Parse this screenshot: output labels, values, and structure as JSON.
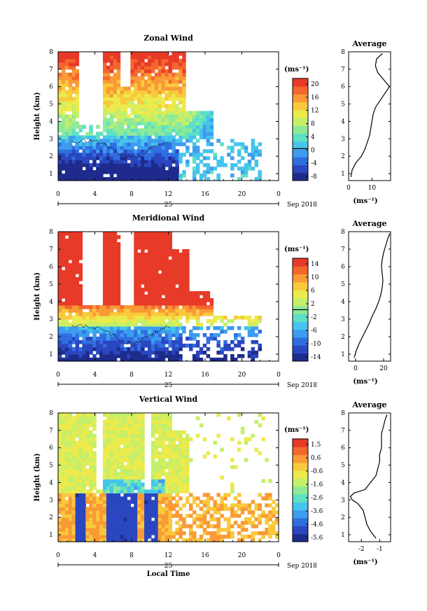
{
  "colors": {
    "palette": [
      "#1f2b8c",
      "#2a47c0",
      "#2f6ee0",
      "#3d9cf0",
      "#45c4ec",
      "#5ee0c4",
      "#8eea96",
      "#c4ef6a",
      "#ecea4c",
      "#f9c93c",
      "#f99a36",
      "#f4672c",
      "#e83a28"
    ],
    "line": "#000000",
    "background": "#ffffff"
  },
  "chart_data": [
    {
      "type": "heatmap",
      "title": "Zonal Wind",
      "ylabel": "Height (km)",
      "xlabel": "",
      "xlim": [
        0,
        24
      ],
      "ylim": [
        0.6,
        8
      ],
      "xticks": [
        "0",
        "4",
        "8",
        "12",
        "16",
        "20",
        "0"
      ],
      "yticks": [
        "1",
        "2",
        "3",
        "4",
        "5",
        "6",
        "7",
        "8"
      ],
      "date_label": "25",
      "month_label": "Sep 2018",
      "colorbar": {
        "unit": "(ms⁻¹)",
        "ticks": [
          "20",
          "16",
          "12",
          "8",
          "4",
          "0",
          "-4",
          "-8"
        ],
        "min": -10,
        "max": 22
      },
      "values_summary": {
        "upper_max": 22,
        "lower_min": -8
      },
      "average": {
        "title": "Average",
        "xlabel": "(ms⁻¹)",
        "xticks": [
          "0",
          "10"
        ],
        "xlim": [
          0,
          18
        ],
        "height": [
          0.8,
          1.2,
          1.6,
          2.0,
          2.4,
          2.8,
          3.2,
          3.6,
          4.0,
          4.4,
          4.8,
          5.2,
          5.6,
          6.0,
          6.4,
          6.8,
          7.2,
          7.6,
          7.9
        ],
        "value": [
          1.0,
          1.5,
          3.0,
          5.5,
          7.0,
          8.0,
          9.0,
          9.5,
          10.0,
          10.5,
          11.5,
          13.5,
          15.5,
          17.5,
          15.0,
          12.5,
          11.5,
          12.0,
          14.5
        ]
      }
    },
    {
      "type": "heatmap",
      "title": "Meridional Wind",
      "ylabel": "Height (km)",
      "xlabel": "",
      "xlim": [
        0,
        24
      ],
      "ylim": [
        0.6,
        8
      ],
      "xticks": [
        "0",
        "4",
        "8",
        "12",
        "16",
        "20",
        "0"
      ],
      "yticks": [
        "1",
        "2",
        "3",
        "4",
        "5",
        "6",
        "7",
        "8"
      ],
      "date_label": "25",
      "month_label": "Sep 2018",
      "colorbar": {
        "unit": "(ms⁻¹)",
        "ticks": [
          "14",
          "10",
          "6",
          "2",
          "-2",
          "-6",
          "-10",
          "-14"
        ],
        "min": -16,
        "max": 16
      },
      "values_summary": {
        "upper_max": 16,
        "lower_min": -14
      },
      "average": {
        "title": "Average",
        "xlabel": "(ms⁻¹)",
        "xticks": [
          "0",
          "20"
        ],
        "xlim": [
          -5,
          25
        ],
        "height": [
          0.8,
          1.2,
          1.6,
          2.0,
          2.4,
          2.8,
          3.2,
          3.6,
          4.0,
          4.4,
          4.8,
          5.2,
          5.6,
          6.0,
          6.4,
          6.8,
          7.2,
          7.6,
          7.9
        ],
        "value": [
          -1.0,
          0.5,
          2.5,
          5.0,
          7.5,
          10.0,
          12.0,
          14.5,
          16.5,
          18.0,
          19.0,
          19.5,
          19.0,
          18.5,
          19.0,
          20.0,
          21.5,
          23.0,
          24.5
        ]
      }
    },
    {
      "type": "heatmap",
      "title": "Vertical Wind",
      "ylabel": "Height (km)",
      "xlabel": "Local Time",
      "xlim": [
        0,
        24
      ],
      "ylim": [
        0.6,
        8
      ],
      "xticks": [
        "0",
        "4",
        "8",
        "12",
        "16",
        "20",
        "0"
      ],
      "yticks": [
        "1",
        "2",
        "3",
        "4",
        "5",
        "6",
        "7",
        "8"
      ],
      "date_label": "25",
      "month_label": "Sep 2018",
      "colorbar": {
        "unit": "(ms⁻¹)",
        "ticks": [
          "1.5",
          "0.6",
          "-0.6",
          "-1.6",
          "-2.6",
          "-3.6",
          "-4.6",
          "-5.6"
        ],
        "min": -6.0,
        "max": 2.0
      },
      "values_summary": {
        "upper_max": 1.5,
        "lower_min": -5.6
      },
      "average": {
        "title": "Average",
        "xlabel": "(ms⁻¹)",
        "xticks": [
          "-2",
          "-1"
        ],
        "xlim": [
          -2.7,
          -0.4
        ],
        "height": [
          0.8,
          1.2,
          1.6,
          2.0,
          2.4,
          2.8,
          3.0,
          3.2,
          3.4,
          3.6,
          4.0,
          4.4,
          4.8,
          5.2,
          5.6,
          6.0,
          6.4,
          6.8,
          7.2,
          7.6,
          7.9
        ],
        "value": [
          -1.2,
          -1.5,
          -1.7,
          -1.8,
          -1.9,
          -2.2,
          -2.5,
          -2.6,
          -2.4,
          -1.8,
          -1.5,
          -1.2,
          -1.1,
          -1.0,
          -1.0,
          -0.9,
          -0.9,
          -0.9,
          -0.8,
          -0.7,
          -0.6
        ]
      }
    }
  ]
}
